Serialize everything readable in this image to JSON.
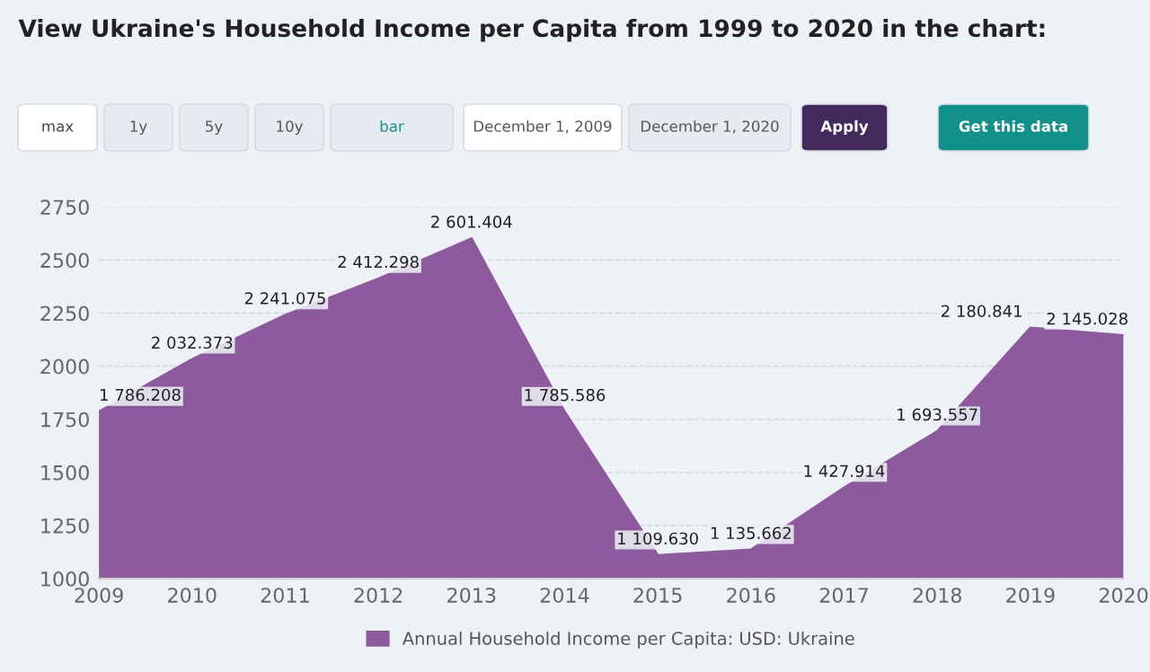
{
  "chart_data": {
    "type": "area",
    "title": "View Ukraine's Household Income per Capita from 1999 to 2020 in the chart:",
    "annotations": [
      "max",
      "1y",
      "5y",
      "10y",
      "bar",
      "December 1, 2009",
      "December 1, 2020",
      "Apply",
      "Get this data"
    ],
    "x": [
      2009,
      2010,
      2011,
      2012,
      2013,
      2014,
      2015,
      2016,
      2017,
      2018,
      2019,
      2020
    ],
    "series": [
      {
        "name": "Annual Household Income per Capita: USD: Ukraine",
        "color": "#8e5a9e",
        "values": [
          1786.208,
          2032.373,
          2241.075,
          2412.298,
          2601.404,
          1785.586,
          1109.63,
          1135.662,
          1427.914,
          1693.557,
          2180.841,
          2145.028
        ],
        "value_labels": [
          "1 786.208",
          "2 032.373",
          "2 241.075",
          "2 412.298",
          "2 601.404",
          "1 785.586",
          "1 109.630",
          "1 135.662",
          "1 427.914",
          "1 693.557",
          "2 180.841",
          "2 145.028"
        ]
      }
    ],
    "xlim": [
      2009,
      2020
    ],
    "xticks": [
      2009,
      2010,
      2011,
      2012,
      2013,
      2014,
      2015,
      2016,
      2017,
      2018,
      2019,
      2020
    ],
    "ylim": [
      1000,
      2750
    ],
    "yticks": [
      1000,
      1250,
      1500,
      1750,
      2000,
      2250,
      2500,
      2750
    ],
    "grid": "y",
    "legend": "bottom"
  }
}
